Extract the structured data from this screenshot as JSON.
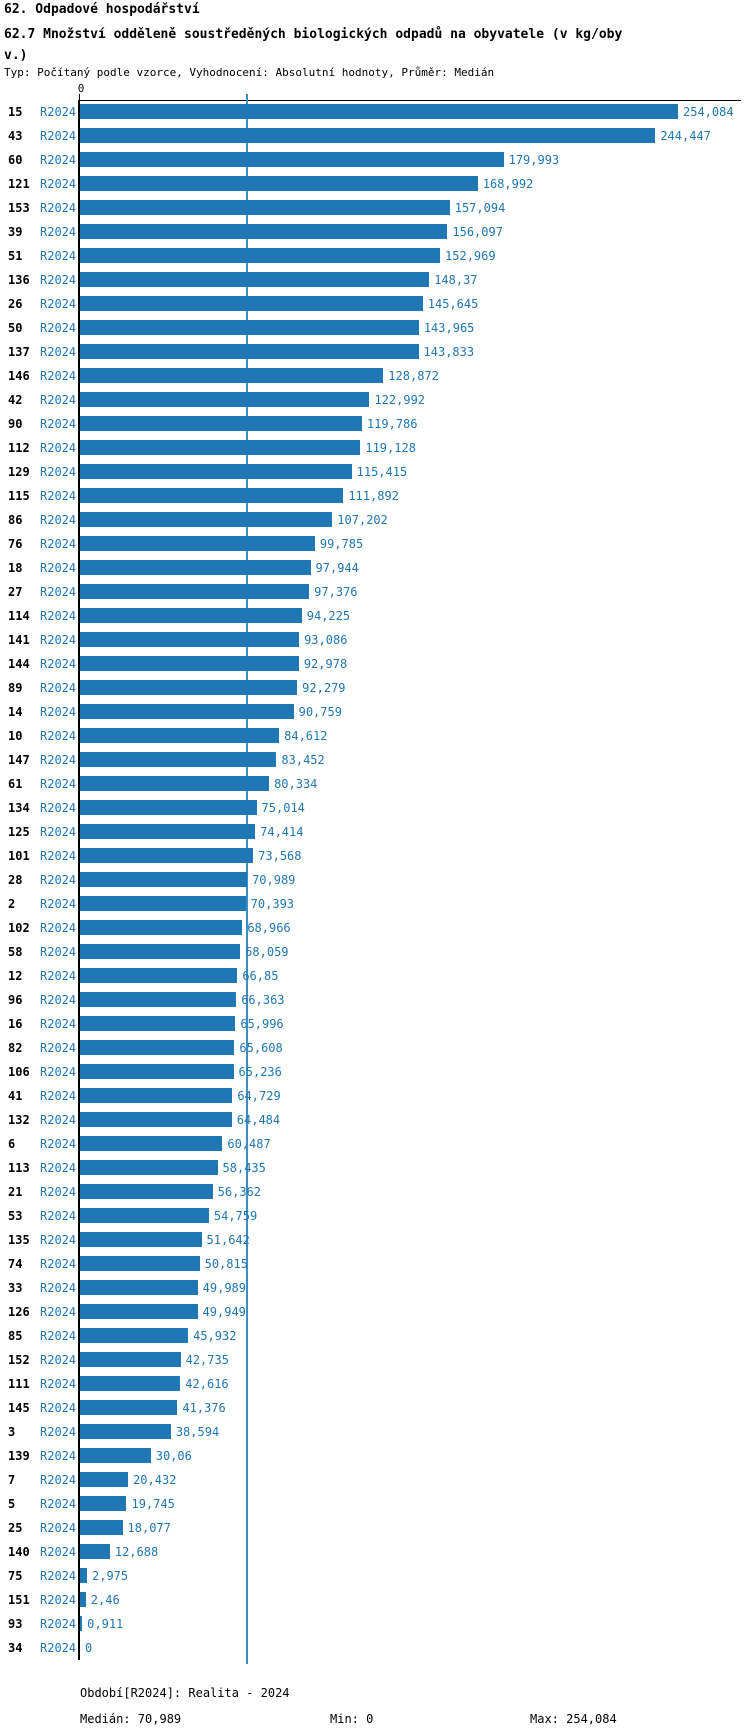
{
  "header": {
    "title": "62. Odpadové hospodářství",
    "subtitle": "62.7 Množství odděleně soustředěných biologických odpadů na obyvatele (v kg/obyv.)",
    "meta": "Typ: Počítaný podle vzorce, Vyhodnocení: Absolutní hodnoty, Průměr: Medián"
  },
  "footer": {
    "period": "Období[R2024]: Realita - 2024",
    "median": "Medián: 70,989",
    "min": "Min: 0",
    "max": "Max: 254,084"
  },
  "chart_data": {
    "type": "bar",
    "orientation": "horizontal",
    "title": "62. Odpadové hospodářství",
    "subtitle": "62.7 Množství odděleně soustředěných biologických odpadů na obyvatele (v kg/obyv.)",
    "meta": "Typ: Počítaný podle vzorce, Vyhodnocení: Absolutní hodnoty, Průměr: Medián",
    "series_label": "R2024",
    "x_axis_tick": "0",
    "xlim": [
      0,
      280
    ],
    "grid": false,
    "legend_position": "none",
    "median": 70.989,
    "min": 0,
    "max": 254.084,
    "colors": {
      "bar": "#1f77b4",
      "text_accent": "#1f77b4",
      "median_line": "#3f8dc5",
      "axis": "#000000"
    },
    "categories": [
      "15",
      "43",
      "60",
      "121",
      "153",
      "39",
      "51",
      "136",
      "26",
      "50",
      "137",
      "146",
      "42",
      "90",
      "112",
      "129",
      "115",
      "86",
      "76",
      "18",
      "27",
      "114",
      "141",
      "144",
      "89",
      "14",
      "10",
      "147",
      "61",
      "134",
      "125",
      "101",
      "28",
      "2",
      "102",
      "58",
      "12",
      "96",
      "16",
      "82",
      "106",
      "41",
      "132",
      "6",
      "113",
      "21",
      "53",
      "135",
      "74",
      "33",
      "126",
      "85",
      "152",
      "111",
      "145",
      "3",
      "139",
      "7",
      "5",
      "25",
      "140",
      "75",
      "151",
      "93",
      "34"
    ],
    "values": [
      254.084,
      244.447,
      179.993,
      168.992,
      157.094,
      156.097,
      152.969,
      148.37,
      145.645,
      143.965,
      143.833,
      128.872,
      122.992,
      119.786,
      119.128,
      115.415,
      111.892,
      107.202,
      99.785,
      97.944,
      97.376,
      94.225,
      93.086,
      92.978,
      92.279,
      90.759,
      84.612,
      83.452,
      80.334,
      75.014,
      74.414,
      73.568,
      70.989,
      70.393,
      68.966,
      68.059,
      66.85,
      66.363,
      65.996,
      65.608,
      65.236,
      64.729,
      64.484,
      60.487,
      58.435,
      56.362,
      54.759,
      51.642,
      50.815,
      49.989,
      49.949,
      45.932,
      42.735,
      42.616,
      41.376,
      38.594,
      30.06,
      20.432,
      19.745,
      18.077,
      12.688,
      2.975,
      2.46,
      0.911,
      0
    ],
    "value_labels": [
      "254,084",
      "244,447",
      "179,993",
      "168,992",
      "157,094",
      "156,097",
      "152,969",
      "148,37",
      "145,645",
      "143,965",
      "143,833",
      "128,872",
      "122,992",
      "119,786",
      "119,128",
      "115,415",
      "111,892",
      "107,202",
      "99,785",
      "97,944",
      "97,376",
      "94,225",
      "93,086",
      "92,978",
      "92,279",
      "90,759",
      "84,612",
      "83,452",
      "80,334",
      "75,014",
      "74,414",
      "73,568",
      "70,989",
      "70,393",
      "68,966",
      "68,059",
      "66,85",
      "66,363",
      "65,996",
      "65,608",
      "65,236",
      "64,729",
      "64,484",
      "60,487",
      "58,435",
      "56,362",
      "54,759",
      "51,642",
      "50,815",
      "49,989",
      "49,949",
      "45,932",
      "42,735",
      "42,616",
      "41,376",
      "38,594",
      "30,06",
      "20,432",
      "19,745",
      "18,077",
      "12,688",
      "2,975",
      "2,46",
      "0,911",
      "0"
    ]
  }
}
